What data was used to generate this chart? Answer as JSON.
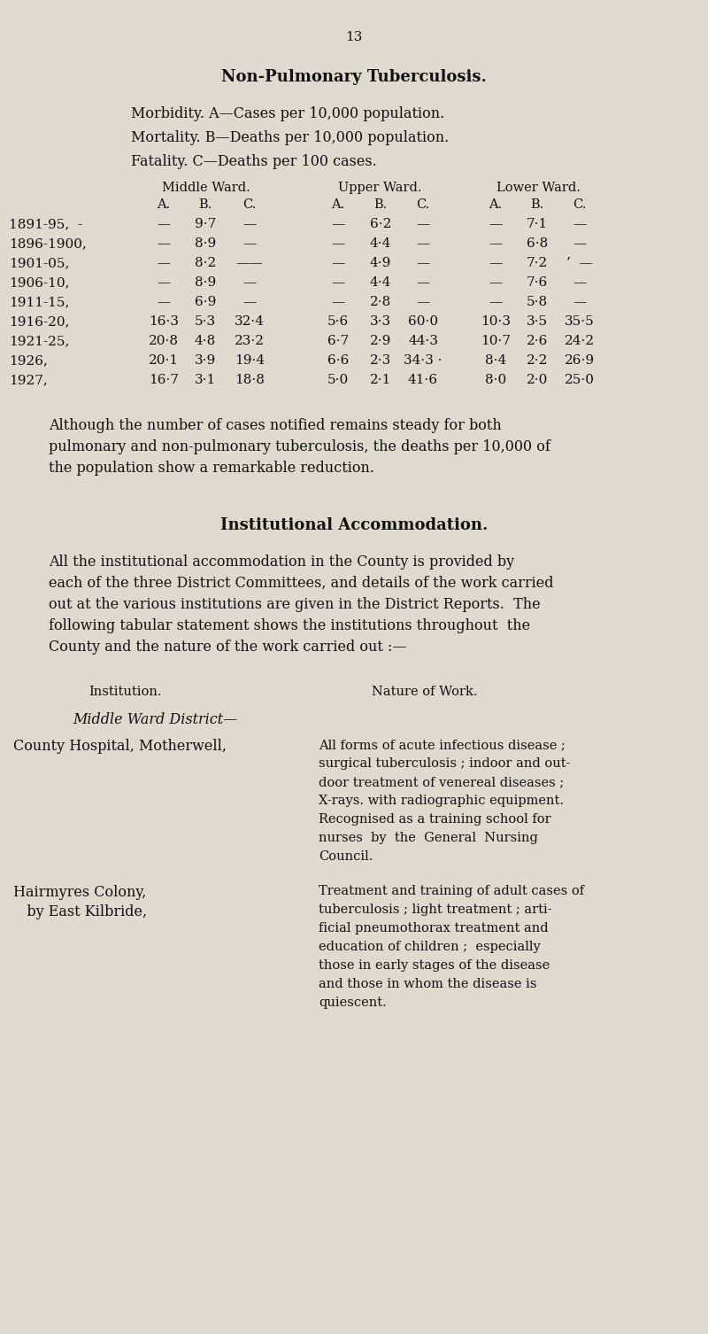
{
  "page_number": "13",
  "bg_color": "#dedad0",
  "text_color": "#111111",
  "title": "Non-Pulmonary Tuberculosis.",
  "morbidity_line": "Morbidity. A—Cases per 10,000 population.",
  "mortality_line": "Mortality. B—Deaths per 10,000 population.",
  "fatality_line": "Fatality. C—Deaths per 100 cases.",
  "ward_headers": [
    "Middle Ward.",
    "Upper Ward.",
    "Lower Ward."
  ],
  "abc_headers": [
    "A.",
    "B.",
    "C.",
    "A.",
    "B.",
    "C.",
    "A.",
    "B.",
    "C."
  ],
  "table_rows": [
    [
      "1891-95,  -",
      "—",
      "9·7",
      "—",
      "—",
      "6·2",
      "—",
      "—",
      "7·1",
      "—"
    ],
    [
      "1896-1900,",
      "—",
      "8·9",
      "—",
      "—",
      "4·4",
      "—",
      "—",
      "6·8",
      "—"
    ],
    [
      "1901-05,",
      "—",
      "8·2",
      "——",
      "—",
      "4·9",
      "—",
      "—",
      "7·2",
      "’  —"
    ],
    [
      "1906-10,",
      "—",
      "8·9",
      "—",
      "—",
      "4·4",
      "—",
      "—",
      "7·6",
      "—"
    ],
    [
      "1911-15,",
      "—",
      "6·9",
      "—",
      "—",
      "2·8",
      "—",
      "—",
      "5·8",
      "—"
    ],
    [
      "1916-20,",
      "16·3",
      "5·3",
      "32·4",
      "5·6",
      "3·3",
      "60·0",
      "10·3",
      "3·5",
      "35·5"
    ],
    [
      "1921-25,",
      "20·8",
      "4·8",
      "23·2",
      "6·7",
      "2·9",
      "44·3",
      "10·7",
      "2·6",
      "24·2"
    ],
    [
      "1926,",
      "20·1",
      "3·9",
      "19·4",
      "6·6",
      "2·3",
      "34·3 ·",
      "8·4",
      "2·2",
      "26·9"
    ],
    [
      "1927,",
      "16·7",
      "3·1",
      "18·8",
      "5·0",
      "2·1",
      "41·6",
      "8·0",
      "2·0",
      "25·0"
    ]
  ],
  "paragraph1": "Although the number of cases notified remains steady for both pulmonary and non-pulmonary tuberculosis, the deaths per 10,000 of the population show a remarkable reduction.",
  "section_title": "Institutional Accommodation.",
  "paragraph2_lines": [
    "All the institutional accommodation in the County is provided by",
    "each of the three District Committees, and details of the work carried",
    "out at the various institutions are given in the District Reports.  The",
    "following tabular statement shows the institutions throughout  the",
    "County and the nature of the work carried out :—"
  ],
  "inst_header": "Institution.",
  "work_header": "Nature of Work.",
  "sub_header": "Middle Ward District—",
  "inst1_name": "County Hospital, Motherwell,",
  "inst1_work_lines": [
    "All forms of acute infectious disease ;",
    "surgical tuberculosis ; indoor and out-",
    "door treatment of venereal diseases ;",
    "X-rays. with radiographic equipment.",
    "Recognised as a training school for",
    "nurses  by  the  General  Nursing",
    "Council."
  ],
  "inst2_name_lines": [
    "Hairmyres Colony,",
    "   by East Kilbride,"
  ],
  "inst2_work_lines": [
    "Treatment and training of adult cases of",
    "tuberculosis ; light treatment ; arti-",
    "ficial pneumothorax treatment and",
    "education of children ;  especially",
    "those in early stages of the disease",
    "and those in whom the disease is",
    "quiescent."
  ]
}
